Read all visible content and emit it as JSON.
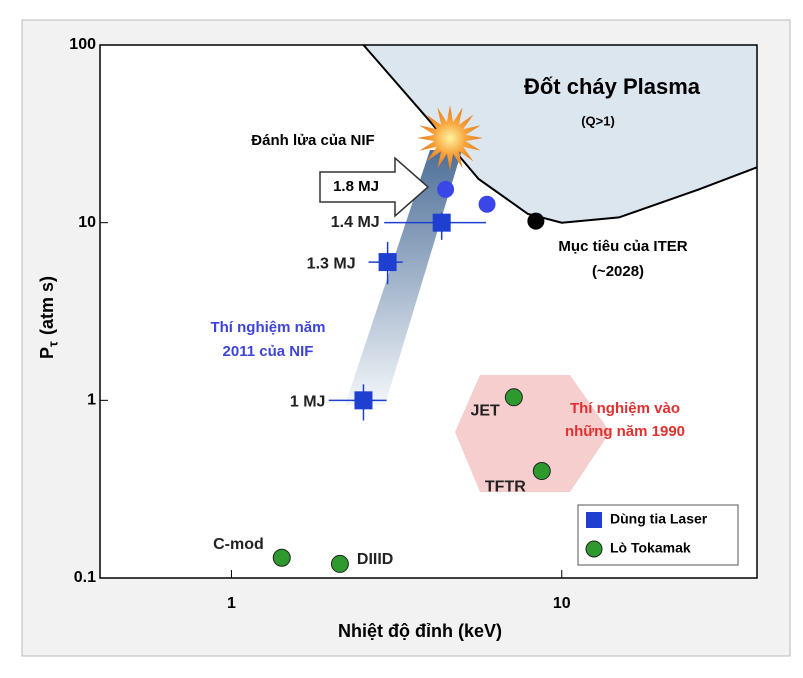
{
  "chart_data": {
    "type": "scatter",
    "log_x": true,
    "log_y": true,
    "xlabel": "Nhiệt độ đỉnh (keV)",
    "ylabel_main": "P",
    "ylabel_sub": "τ",
    "ylabel_unit": "(atm s)",
    "xlim": [
      0.4,
      39
    ],
    "ylim": [
      0.1,
      100
    ],
    "xticks": [
      1,
      10
    ],
    "yticks": [
      0.1,
      1,
      10,
      100
    ],
    "ignition_boundary": {
      "x": [
        2.51,
        3.95,
        5.6,
        7.9,
        10,
        14.9,
        26,
        39
      ],
      "y": [
        100,
        38,
        17.6,
        11.2,
        10,
        10.7,
        15.4,
        20.5
      ],
      "color": "#dce6ef"
    },
    "series": [
      {
        "name": "Dùng tia Laser",
        "color": "#1f3fd0",
        "marker": "square",
        "x": [
          2.51,
          2.97,
          4.33
        ],
        "y": [
          1,
          6,
          10
        ],
        "x_low": [
          1.97,
          2.6,
          2.9
        ],
        "x_high": [
          2.95,
          3.3,
          5.9
        ],
        "y_low": [
          0.77,
          4.5,
          8.0
        ],
        "y_high": [
          1.23,
          7.8,
          11.4
        ],
        "point_labels": [
          "1 MJ",
          "1.3 MJ",
          "1.4 MJ"
        ]
      },
      {
        "color": "#3a46e8",
        "marker": "circle",
        "x": [
          4.45,
          5.94
        ],
        "y": [
          15.4,
          12.7
        ]
      },
      {
        "name": "Lò Tokamak",
        "color": "#2e9a2e",
        "marker": "circle",
        "x": [
          7.16,
          8.7,
          1.42,
          2.13
        ],
        "y": [
          1.04,
          0.4,
          0.13,
          0.12
        ],
        "point_labels": [
          "JET",
          "TFTR",
          "C-mod",
          "DIIID"
        ]
      },
      {
        "color": "#000000",
        "marker": "circle",
        "x": [
          8.35
        ],
        "y": [
          10.2
        ]
      }
    ],
    "annotations": [
      "Đốt cháy Plasma",
      "(Q>1)",
      "Đánh lửa của NIF",
      "1.8 MJ",
      "Mục tiêu của ITER",
      "(~2028)",
      "Thí nghiệm năm",
      "2011 của NIF",
      "Thí nghiệm vào",
      "những năm 1990"
    ]
  }
}
